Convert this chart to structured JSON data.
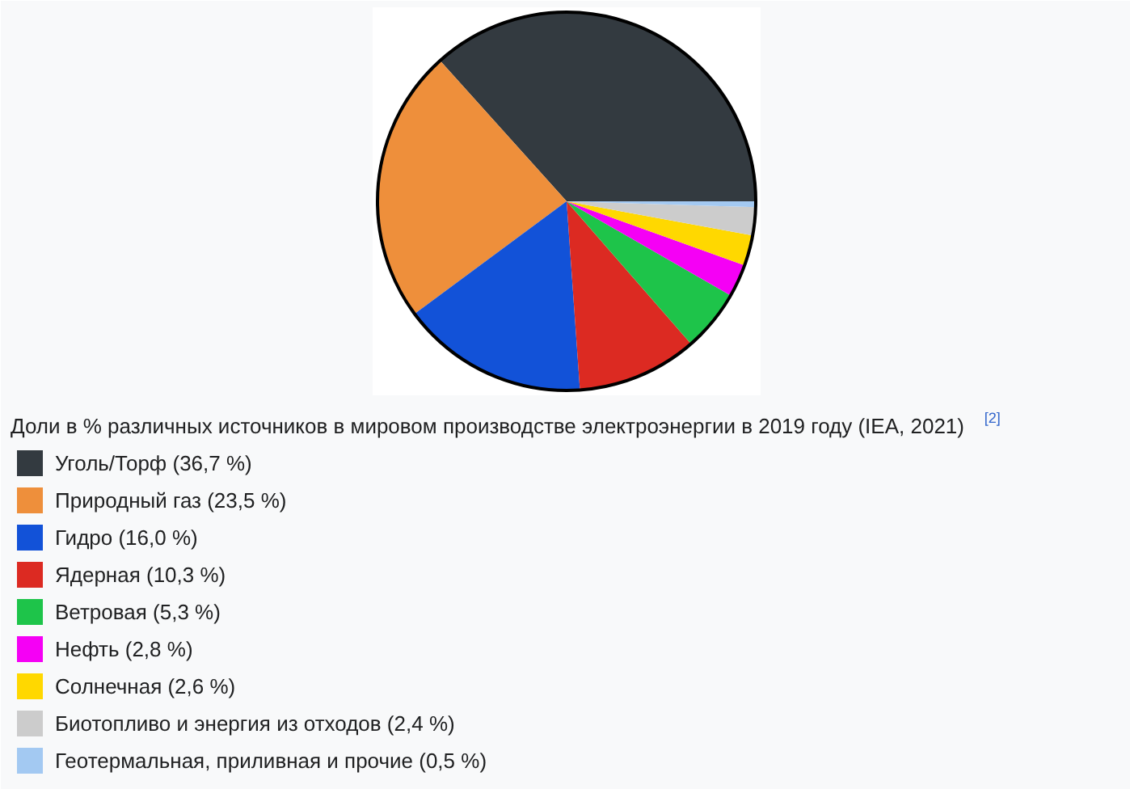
{
  "chart_data": {
    "type": "pie",
    "title": "Доли в % различных источников в мировом производстве электроэнергии в 2019 году (IEA, 2021)$^{[2]}$",
    "categories": [
      "Уголь/Торф (36,7 %)",
      "Природный газ (23,5 %)",
      "Гидро (16,0 %)",
      "Ядерная (10,3 %)",
      "Ветровая (5,3 %)",
      "Нефть (2,8 %)",
      "Солнечная (2,6 %)",
      "Биотопливо и энергия из отходов (2,4 %)",
      "Геотермальная, приливная и прочие (0,5 %)"
    ],
    "values": [
      36.7,
      23.5,
      16.0,
      10.3,
      5.3,
      2.8,
      2.6,
      2.4,
      0.5
    ],
    "colors": [
      "#333a40",
      "#ee8f3b",
      "#1252d8",
      "#dc2a22",
      "#1ec44a",
      "#f500f5",
      "#ffd800",
      "#cccccc",
      "#a3c9f2"
    ],
    "legend": "bottom left"
  }
}
